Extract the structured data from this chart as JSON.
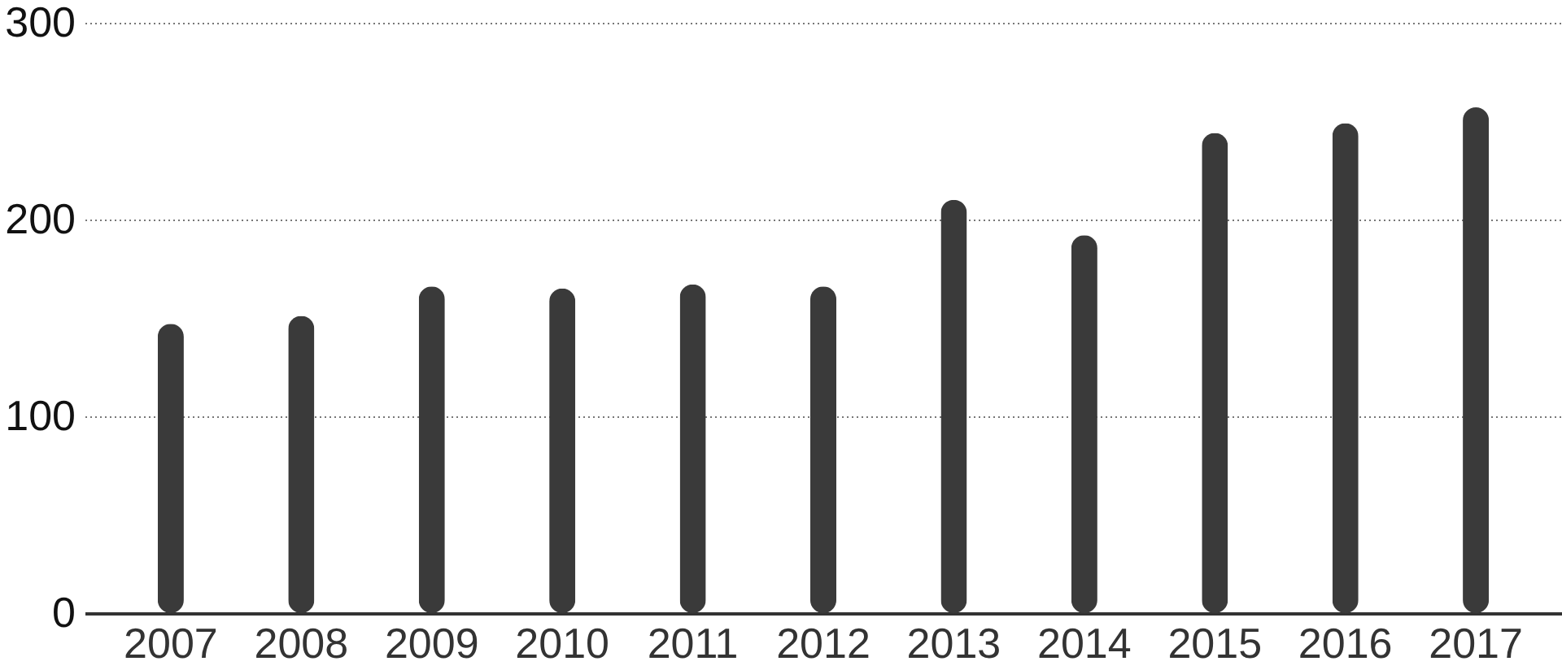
{
  "chart_data": {
    "type": "bar",
    "categories": [
      "2007",
      "2008",
      "2009",
      "2010",
      "2011",
      "2012",
      "2013",
      "2014",
      "2015",
      "2016",
      "2017"
    ],
    "values": [
      147,
      151,
      166,
      165,
      167,
      166,
      210,
      192,
      244,
      249,
      257
    ],
    "color": "#3a3a3a",
    "ylim": [
      0,
      300
    ],
    "yticks": [
      0,
      100,
      200,
      300
    ],
    "grid": "y"
  }
}
